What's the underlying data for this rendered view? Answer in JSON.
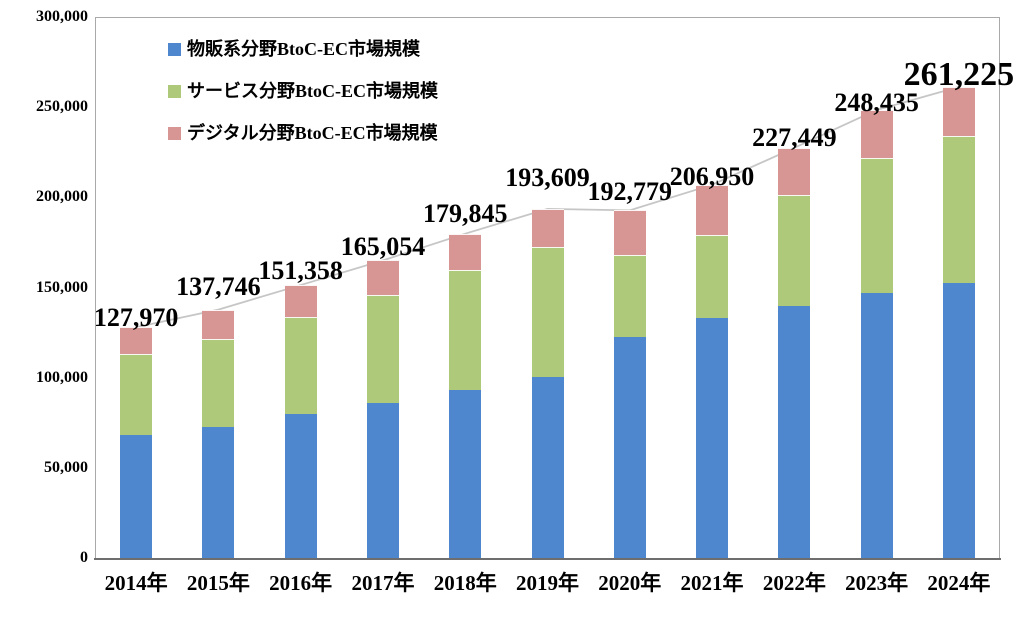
{
  "chart_data": {
    "type": "bar",
    "subtype": "stacked-bars-with-total-line",
    "title": "",
    "xlabel": "",
    "ylabel": "",
    "categories": [
      "2014年",
      "2015年",
      "2016年",
      "2017年",
      "2018年",
      "2019年",
      "2020年",
      "2021年",
      "2022年",
      "2023年",
      "2024年"
    ],
    "series": [
      {
        "name": "物販系分野BtoC-EC市場規模",
        "color": "#4F87CE",
        "values": [
          68043,
          72398,
          80043,
          86008,
          92992,
          100515,
          122333,
          132865,
          139997,
          146760,
          152254
        ]
      },
      {
        "name": "サービス分野BtoC-EC市場規模",
        "color": "#AFC97A",
        "values": [
          44816,
          49014,
          53532,
          59568,
          66471,
          71672,
          45832,
          46424,
          61477,
          75169,
          81768
        ]
      },
      {
        "name": "デジタル分野BtoC-EC市場規模",
        "color": "#D79594",
        "values": [
          15111,
          16334,
          17782,
          19478,
          20382,
          21422,
          24614,
          27661,
          25974,
          26506,
          27203
        ]
      }
    ],
    "total_labels": [
      "127,970",
      "137,746",
      "151,358",
      "165,054",
      "179,845",
      "193,609",
      "192,779",
      "206,950",
      "227,449",
      "248,435",
      "261,225"
    ],
    "y_ticks": [
      "0",
      "50,000",
      "100,000",
      "150,000",
      "200,000",
      "250,000",
      "300,000"
    ],
    "ylim": [
      0,
      300000
    ],
    "grid": false,
    "legend_position": "top-left-inside",
    "line_color": "#c6c6c6",
    "axis_color": "#6e6e6e",
    "border_color": "#a9a9a9"
  }
}
